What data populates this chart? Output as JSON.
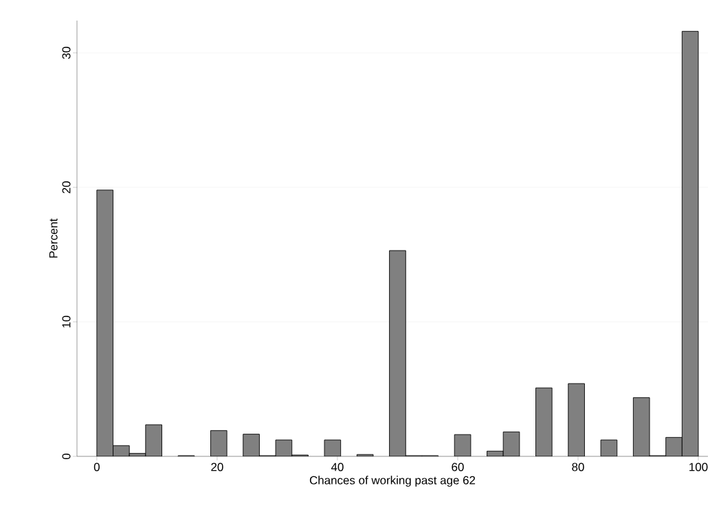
{
  "chart_data": {
    "type": "histogram",
    "xlabel": "Chances of working past age 62",
    "ylabel": "Percent",
    "bins": [
      0,
      2.7027,
      5.4054,
      8.1081,
      10.8108,
      13.5135,
      16.2162,
      18.9189,
      21.6216,
      24.3243,
      27.027,
      29.7297,
      32.4324,
      35.1351,
      37.8378,
      40.5405,
      43.2432,
      45.9459,
      48.6486,
      51.3514,
      54.0541,
      56.7568,
      59.4595,
      62.1622,
      64.8649,
      67.5676,
      70.2703,
      72.973,
      75.6757,
      78.3784,
      81.0811,
      83.7838,
      86.4865,
      89.1892,
      91.8919,
      94.5946,
      97.2973,
      100
    ],
    "values": [
      19.8,
      0.8,
      0.22,
      2.35,
      0,
      0.05,
      0,
      1.92,
      0,
      1.65,
      0.05,
      1.22,
      0.1,
      0,
      1.22,
      0,
      0.14,
      0,
      15.3,
      0.05,
      0.05,
      0,
      1.62,
      0,
      0.39,
      1.82,
      0,
      5.09,
      0,
      5.41,
      0,
      1.22,
      0,
      4.37,
      0.05,
      1.41,
      31.6
    ],
    "color": "#808080",
    "xlim": [
      -3.3,
      101.6
    ],
    "ylim": [
      0,
      32.4
    ],
    "xticks": [
      0,
      20,
      40,
      60,
      80,
      100
    ],
    "yticks": [
      0,
      10,
      20,
      30
    ],
    "grid": "y"
  }
}
